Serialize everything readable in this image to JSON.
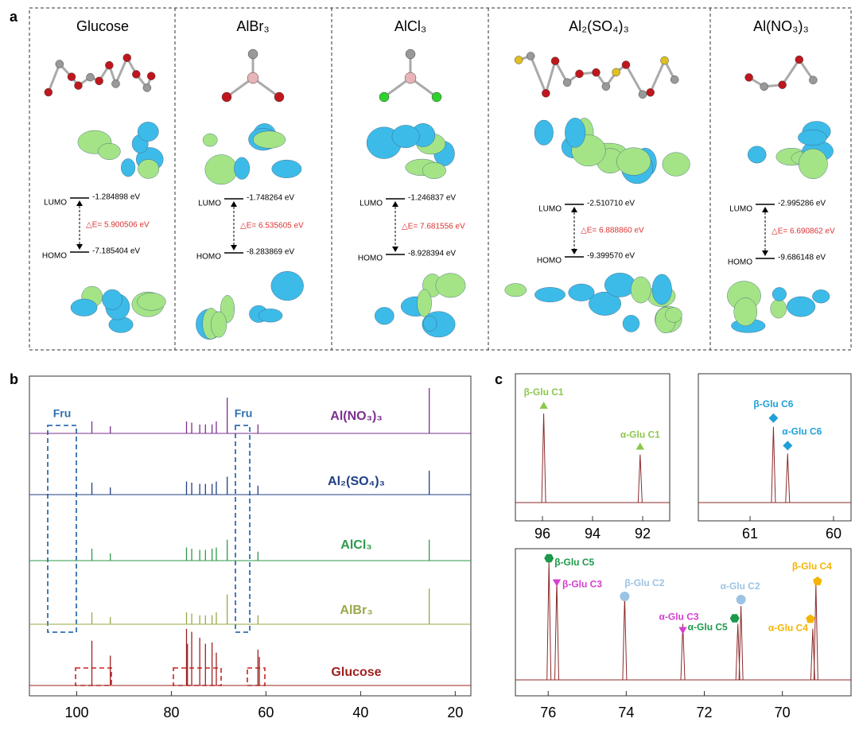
{
  "panel_a": {
    "label": "a",
    "columns": [
      {
        "name": "Glucose",
        "lumo_label": "LUMO",
        "lumo": "-1.284898 eV",
        "gap": "△E=  5.900506 eV",
        "homo_label": "HOMO",
        "homo": "-7.185404 eV"
      },
      {
        "name": "AlBr₃",
        "lumo_label": "LUMO",
        "lumo": "-1.748264 eV",
        "gap": "△E= 6.535605 eV",
        "homo_label": "HOMO",
        "homo": "-8.283869 eV"
      },
      {
        "name": "AlCl₃",
        "lumo_label": "LUMO",
        "lumo": "-1.246837 eV",
        "gap": "△E= 7.681556 eV",
        "homo_label": "HOMO",
        "homo": "-8.928394 eV"
      },
      {
        "name": "Al₂(SO₄)₃",
        "lumo_label": "LUMO",
        "lumo": "-2.510710 eV",
        "gap": "△E= 6.888860 eV",
        "homo_label": "HOMO",
        "homo": "-9.399570 eV"
      },
      {
        "name": "Al(NO₃)₃",
        "lumo_label": "LUMO",
        "lumo": "-2.995286 eV",
        "gap": "△E= 6.690862 eV",
        "homo_label": "HOMO",
        "homo": "-9.686148 eV"
      }
    ]
  },
  "panel_b": {
    "label": "b",
    "xlim": [
      110,
      16.7
    ],
    "xticks": [
      100,
      80,
      60,
      40,
      20
    ],
    "annotations": [
      "Fru",
      "Fru"
    ],
    "spectra": [
      {
        "name": "Al(NO₃)₃",
        "color": "#7b2f8f",
        "peaks": [
          [
            96.8,
            0.2
          ],
          [
            92.9,
            0.12
          ],
          [
            76.8,
            0.2
          ],
          [
            75.7,
            0.18
          ],
          [
            74.0,
            0.15
          ],
          [
            72.8,
            0.15
          ],
          [
            71.4,
            0.15
          ],
          [
            70.5,
            0.2
          ],
          [
            68.2,
            0.6
          ],
          [
            61.7,
            0.15
          ],
          [
            25.5,
            0.76
          ]
        ]
      },
      {
        "name": "Al₂(SO₄)₃",
        "color": "#1f3f86",
        "peaks": [
          [
            96.8,
            0.2
          ],
          [
            92.9,
            0.12
          ],
          [
            76.8,
            0.22
          ],
          [
            75.7,
            0.2
          ],
          [
            74.0,
            0.18
          ],
          [
            72.8,
            0.18
          ],
          [
            71.4,
            0.18
          ],
          [
            70.5,
            0.22
          ],
          [
            68.2,
            0.3
          ],
          [
            61.7,
            0.15
          ],
          [
            25.5,
            0.4
          ]
        ]
      },
      {
        "name": "AlCl₃",
        "color": "#2e9a4a",
        "peaks": [
          [
            96.8,
            0.2
          ],
          [
            92.9,
            0.12
          ],
          [
            76.8,
            0.22
          ],
          [
            75.7,
            0.2
          ],
          [
            74.0,
            0.18
          ],
          [
            72.8,
            0.18
          ],
          [
            71.4,
            0.2
          ],
          [
            70.5,
            0.22
          ],
          [
            68.2,
            0.35
          ],
          [
            61.7,
            0.15
          ],
          [
            25.5,
            0.35
          ]
        ]
      },
      {
        "name": "AlBr₃",
        "color": "#9aa84a",
        "peaks": [
          [
            96.8,
            0.2
          ],
          [
            92.9,
            0.12
          ],
          [
            76.8,
            0.2
          ],
          [
            75.7,
            0.18
          ],
          [
            74.0,
            0.15
          ],
          [
            72.8,
            0.15
          ],
          [
            71.4,
            0.15
          ],
          [
            70.5,
            0.2
          ],
          [
            68.2,
            0.5
          ],
          [
            61.7,
            0.15
          ],
          [
            25.5,
            0.6
          ]
        ]
      },
      {
        "name": "Glucose",
        "color": "#a02020",
        "peaks": [
          [
            96.8,
            0.75
          ],
          [
            92.9,
            0.5
          ],
          [
            76.8,
            0.95
          ],
          [
            76.6,
            0.7
          ],
          [
            75.7,
            0.9
          ],
          [
            74.0,
            0.8
          ],
          [
            72.8,
            0.7
          ],
          [
            71.4,
            0.72
          ],
          [
            70.5,
            0.55
          ],
          [
            61.7,
            0.6
          ],
          [
            61.4,
            0.48
          ]
        ]
      }
    ]
  },
  "panel_c": {
    "label": "c",
    "insets": [
      {
        "xlim": [
          97.08,
          90.92
        ],
        "xticks": [
          96,
          94,
          92
        ],
        "peaks": [
          {
            "label": "β-Glu C1",
            "ppm": 95.95,
            "height": 1,
            "marker": "triangle",
            "color": "#8cc84b"
          },
          {
            "label": "α-Glu C1",
            "ppm": 92.1,
            "height": 0.54,
            "marker": "triangle",
            "color": "#8cc84b"
          }
        ]
      },
      {
        "xlim": [
          61.62,
          59.79
        ],
        "xticks": [
          61,
          60
        ],
        "peaks": [
          {
            "label": "β-Glu C6",
            "ppm": 60.72,
            "height": 0.85,
            "marker": "diamond",
            "color": "#1fa0d8"
          },
          {
            "label": "α-Glu C6",
            "ppm": 60.55,
            "height": 0.55,
            "marker": "diamond",
            "color": "#1fa0d8"
          }
        ]
      },
      {
        "xlim": [
          76.84,
          68.24
        ],
        "xticks": [
          76,
          74,
          72,
          70
        ],
        "peaks": [
          {
            "label": "β-Glu C5",
            "ppm": 75.98,
            "height": 1,
            "marker": "hexagon",
            "color": "#1a9a4a"
          },
          {
            "label": "β-Glu C3",
            "ppm": 75.78,
            "height": 0.83,
            "marker": "invtriangle",
            "color": "#d63fd0"
          },
          {
            "label": "β-Glu C2",
            "ppm": 74.04,
            "height": 0.7,
            "marker": "circle",
            "color": "#9cc3e4"
          },
          {
            "label": "α-Glu C3",
            "ppm": 72.55,
            "height": 0.47,
            "marker": "invtriangle",
            "color": "#d63fd0"
          },
          {
            "label": "α-Glu C5",
            "ppm": 71.14,
            "height": 0.47,
            "marker": "hexagon",
            "color": "#1a9a4a"
          },
          {
            "label": "α-Glu C2",
            "ppm": 71.06,
            "height": 0.62,
            "marker": "circle",
            "color": "#9cc3e4"
          },
          {
            "label": "α-Glu C4",
            "ppm": 69.22,
            "height": 0.43,
            "marker": "pentagon",
            "color": "#f5b400"
          },
          {
            "label": "β-Glu C4",
            "ppm": 69.14,
            "height": 0.8,
            "marker": "pentagon",
            "color": "#f5b400"
          }
        ]
      }
    ]
  }
}
